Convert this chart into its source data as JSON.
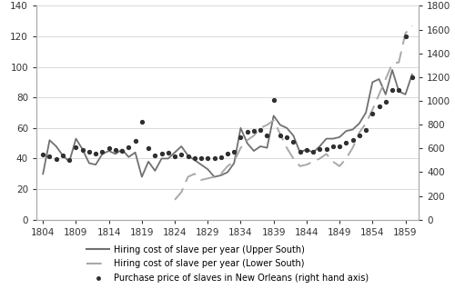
{
  "upper_south_years": [
    1804,
    1805,
    1806,
    1807,
    1808,
    1809,
    1810,
    1811,
    1812,
    1813,
    1814,
    1815,
    1816,
    1817,
    1818,
    1819,
    1820,
    1821,
    1822,
    1823,
    1824,
    1825,
    1826,
    1827,
    1828,
    1829,
    1830,
    1831,
    1832,
    1833,
    1834,
    1835,
    1836,
    1837,
    1838,
    1839,
    1840,
    1841,
    1842,
    1843,
    1844,
    1845,
    1846,
    1847,
    1848,
    1849,
    1850,
    1851,
    1852,
    1853,
    1854,
    1855,
    1856,
    1857,
    1858,
    1859,
    1860
  ],
  "upper_south_values": [
    30,
    52,
    48,
    42,
    38,
    53,
    46,
    37,
    36,
    43,
    45,
    43,
    46,
    41,
    44,
    28,
    38,
    32,
    40,
    40,
    44,
    48,
    42,
    39,
    36,
    33,
    28,
    29,
    31,
    37,
    60,
    50,
    45,
    48,
    47,
    68,
    62,
    60,
    55,
    44,
    46,
    44,
    48,
    53,
    53,
    54,
    58,
    59,
    63,
    70,
    90,
    92,
    82,
    98,
    84,
    82,
    95
  ],
  "lower_south_years": [
    1824,
    1825,
    1826,
    1827,
    1828,
    1829,
    1830,
    1831,
    1832,
    1833,
    1834,
    1835,
    1836,
    1837,
    1838,
    1839,
    1840,
    1841,
    1842,
    1843,
    1844,
    1845,
    1846,
    1847,
    1848,
    1849,
    1850,
    1851,
    1852,
    1853,
    1854,
    1855,
    1856,
    1857,
    1858,
    1859,
    1860
  ],
  "lower_south_values": [
    13,
    18,
    28,
    30,
    26,
    27,
    28,
    30,
    35,
    38,
    47,
    52,
    55,
    60,
    62,
    65,
    56,
    47,
    40,
    35,
    36,
    38,
    40,
    43,
    38,
    35,
    40,
    47,
    57,
    63,
    72,
    82,
    92,
    102,
    103,
    122,
    127
  ],
  "purchase_years": [
    1804,
    1805,
    1806,
    1807,
    1808,
    1809,
    1810,
    1811,
    1812,
    1813,
    1814,
    1815,
    1816,
    1817,
    1818,
    1819,
    1820,
    1821,
    1822,
    1823,
    1824,
    1825,
    1826,
    1827,
    1828,
    1829,
    1830,
    1831,
    1832,
    1833,
    1834,
    1835,
    1836,
    1837,
    1838,
    1839,
    1840,
    1841,
    1842,
    1843,
    1844,
    1845,
    1846,
    1847,
    1848,
    1849,
    1850,
    1851,
    1852,
    1853,
    1854,
    1855,
    1856,
    1857,
    1858,
    1859,
    1860
  ],
  "purchase_values": [
    550,
    530,
    510,
    540,
    500,
    610,
    590,
    570,
    555,
    575,
    600,
    590,
    580,
    610,
    660,
    820,
    600,
    540,
    555,
    560,
    535,
    545,
    535,
    515,
    515,
    520,
    515,
    525,
    555,
    575,
    690,
    740,
    750,
    755,
    710,
    1010,
    710,
    695,
    655,
    575,
    585,
    575,
    595,
    595,
    615,
    615,
    645,
    670,
    710,
    755,
    890,
    950,
    990,
    1090,
    1090,
    1540,
    1195
  ],
  "upper_south_color": "#707070",
  "lower_south_color": "#a8a8a8",
  "purchase_color": "#303030",
  "upper_south_label": "Hiring cost of slave per year (Upper South)",
  "lower_south_label": "Hiring cost of slave per year (Lower South)",
  "purchase_label": "Purchase price of slaves in New Orleans (right hand axis)",
  "ylim_left": [
    0,
    140
  ],
  "ylim_right": [
    0,
    1800
  ],
  "yticks_left": [
    0,
    20,
    40,
    60,
    80,
    100,
    120,
    140
  ],
  "yticks_right": [
    0,
    200,
    400,
    600,
    800,
    1000,
    1200,
    1400,
    1600,
    1800
  ],
  "xticks": [
    1804,
    1809,
    1814,
    1819,
    1824,
    1829,
    1834,
    1839,
    1844,
    1849,
    1854,
    1859
  ],
  "xlim": [
    1803,
    1861
  ],
  "legend_fontsize": 7.0,
  "tick_fontsize": 7.5,
  "background_color": "#ffffff",
  "grid_color": "#cccccc"
}
